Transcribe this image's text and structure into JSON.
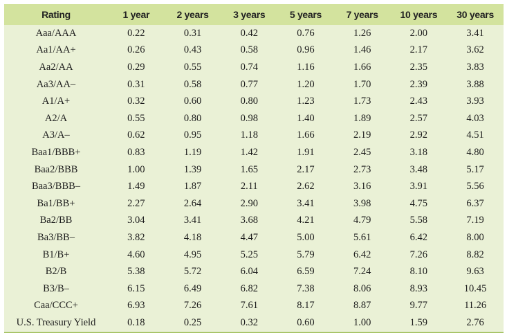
{
  "table": {
    "headers": [
      "Rating",
      "1 year",
      "2 years",
      "3 years",
      "5 years",
      "7 years",
      "10 years",
      "30 years"
    ],
    "rows": [
      [
        "Aaa/AAA",
        "0.22",
        "0.31",
        "0.42",
        "0.76",
        "1.26",
        "2.00",
        "3.41"
      ],
      [
        "Aa1/AA+",
        "0.26",
        "0.43",
        "0.58",
        "0.96",
        "1.46",
        "2.17",
        "3.62"
      ],
      [
        "Aa2/AA",
        "0.29",
        "0.55",
        "0.74",
        "1.16",
        "1.66",
        "2.35",
        "3.83"
      ],
      [
        "Aa3/AA–",
        "0.31",
        "0.58",
        "0.77",
        "1.20",
        "1.70",
        "2.39",
        "3.88"
      ],
      [
        "A1/A+",
        "0.32",
        "0.60",
        "0.80",
        "1.23",
        "1.73",
        "2.43",
        "3.93"
      ],
      [
        "A2/A",
        "0.55",
        "0.80",
        "0.98",
        "1.40",
        "1.89",
        "2.57",
        "4.03"
      ],
      [
        "A3/A–",
        "0.62",
        "0.95",
        "1.18",
        "1.66",
        "2.19",
        "2.92",
        "4.51"
      ],
      [
        "Baa1/BBB+",
        "0.83",
        "1.19",
        "1.42",
        "1.91",
        "2.45",
        "3.18",
        "4.80"
      ],
      [
        "Baa2/BBB",
        "1.00",
        "1.39",
        "1.65",
        "2.17",
        "2.73",
        "3.48",
        "5.17"
      ],
      [
        "Baa3/BBB–",
        "1.49",
        "1.87",
        "2.11",
        "2.62",
        "3.16",
        "3.91",
        "5.56"
      ],
      [
        "Ba1/BB+",
        "2.27",
        "2.64",
        "2.90",
        "3.41",
        "3.98",
        "4.75",
        "6.37"
      ],
      [
        "Ba2/BB",
        "3.04",
        "3.41",
        "3.68",
        "4.21",
        "4.79",
        "5.58",
        "7.19"
      ],
      [
        "Ba3/BB–",
        "3.82",
        "4.18",
        "4.47",
        "5.00",
        "5.61",
        "6.42",
        "8.00"
      ],
      [
        "B1/B+",
        "4.60",
        "4.95",
        "5.25",
        "5.79",
        "6.42",
        "7.26",
        "8.82"
      ],
      [
        "B2/B",
        "5.38",
        "5.72",
        "6.04",
        "6.59",
        "7.24",
        "8.10",
        "9.63"
      ],
      [
        "B3/B–",
        "6.15",
        "6.49",
        "6.82",
        "7.38",
        "8.06",
        "8.93",
        "10.45"
      ],
      [
        "Caa/CCC+",
        "6.93",
        "7.26",
        "7.61",
        "8.17",
        "8.87",
        "9.77",
        "11.26"
      ],
      [
        "U.S. Treasury Yield",
        "0.18",
        "0.25",
        "0.32",
        "0.60",
        "1.00",
        "1.59",
        "2.76"
      ]
    ]
  },
  "colors": {
    "header_bg": "#d3e39e",
    "body_bg": "#eaf1d6",
    "bottom_rule": "#a9c56a"
  }
}
